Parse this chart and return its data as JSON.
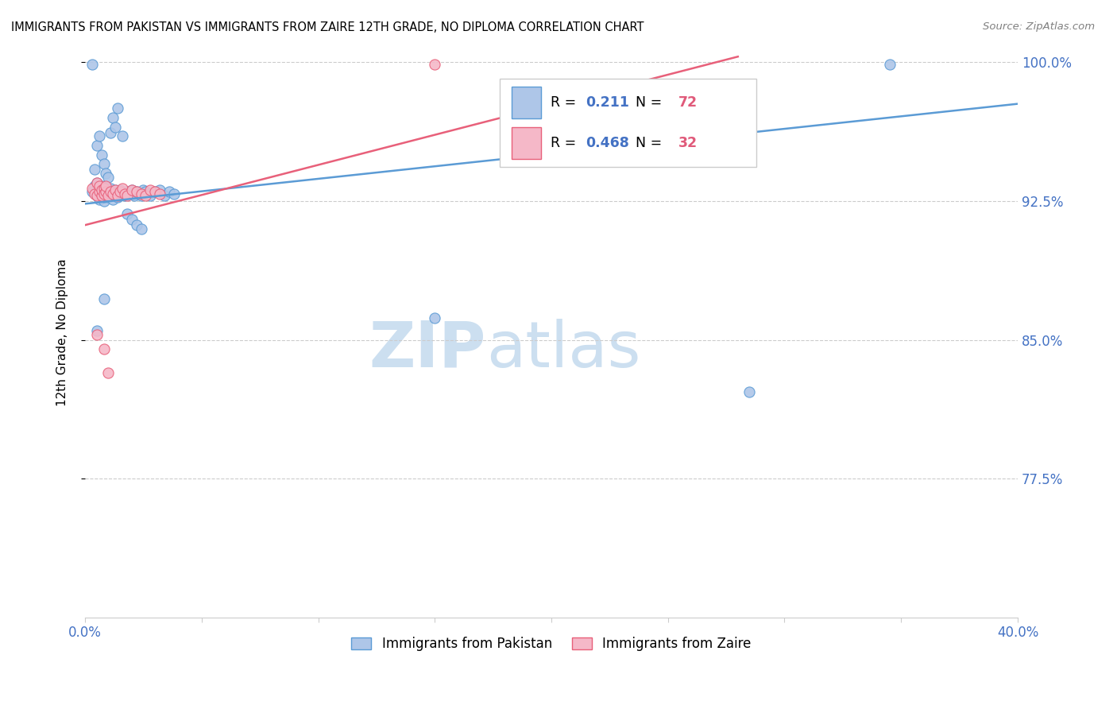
{
  "title": "IMMIGRANTS FROM PAKISTAN VS IMMIGRANTS FROM ZAIRE 12TH GRADE, NO DIPLOMA CORRELATION CHART",
  "source": "Source: ZipAtlas.com",
  "xmin": 0.0,
  "xmax": 0.4,
  "ymin": 0.7,
  "ymax": 1.008,
  "ytick_vals": [
    1.0,
    0.925,
    0.85,
    0.775
  ],
  "ytick_labels": [
    "100.0%",
    "92.5%",
    "85.0%",
    "77.5%"
  ],
  "legend_pakistan": "Immigrants from Pakistan",
  "legend_zaire": "Immigrants from Zaire",
  "R_pakistan": 0.211,
  "N_pakistan": 72,
  "R_zaire": 0.468,
  "N_zaire": 32,
  "color_pakistan_fill": "#aec6e8",
  "color_pakistan_edge": "#5b9bd5",
  "color_zaire_fill": "#f5b8c8",
  "color_zaire_edge": "#e8607a",
  "color_line_pakistan": "#5b9bd5",
  "color_line_zaire": "#e8607a",
  "color_R_val": "#4472c4",
  "color_N_val": "#e05a7a",
  "pak_line_x": [
    0.0,
    0.4
  ],
  "pak_line_y": [
    0.9235,
    0.9775
  ],
  "zaire_line_x": [
    0.0,
    0.28
  ],
  "zaire_line_y": [
    0.912,
    1.003
  ],
  "pakistan_x": [
    0.003,
    0.004,
    0.005,
    0.005,
    0.005,
    0.006,
    0.006,
    0.006,
    0.007,
    0.007,
    0.007,
    0.008,
    0.008,
    0.008,
    0.008,
    0.009,
    0.009,
    0.009,
    0.01,
    0.01,
    0.01,
    0.011,
    0.011,
    0.011,
    0.012,
    0.012,
    0.013,
    0.013,
    0.014,
    0.014,
    0.015,
    0.015,
    0.016,
    0.017,
    0.018,
    0.019,
    0.02,
    0.021,
    0.022,
    0.023,
    0.024,
    0.025,
    0.026,
    0.027,
    0.028,
    0.03,
    0.032,
    0.034,
    0.036,
    0.038,
    0.004,
    0.005,
    0.006,
    0.007,
    0.008,
    0.009,
    0.01,
    0.011,
    0.012,
    0.013,
    0.014,
    0.016,
    0.018,
    0.02,
    0.022,
    0.024,
    0.15,
    0.285,
    0.345,
    0.003,
    0.005,
    0.008
  ],
  "pakistan_y": [
    0.93,
    0.933,
    0.928,
    0.932,
    0.935,
    0.926,
    0.929,
    0.931,
    0.928,
    0.93,
    0.933,
    0.925,
    0.927,
    0.929,
    0.932,
    0.928,
    0.93,
    0.932,
    0.927,
    0.929,
    0.931,
    0.928,
    0.93,
    0.932,
    0.926,
    0.929,
    0.928,
    0.931,
    0.927,
    0.93,
    0.928,
    0.931,
    0.929,
    0.928,
    0.93,
    0.929,
    0.931,
    0.928,
    0.93,
    0.929,
    0.928,
    0.931,
    0.93,
    0.929,
    0.928,
    0.93,
    0.931,
    0.928,
    0.93,
    0.929,
    0.942,
    0.955,
    0.96,
    0.95,
    0.945,
    0.94,
    0.938,
    0.962,
    0.97,
    0.965,
    0.975,
    0.96,
    0.918,
    0.915,
    0.912,
    0.91,
    0.862,
    0.822,
    0.999,
    0.999,
    0.855,
    0.872
  ],
  "zaire_x": [
    0.003,
    0.004,
    0.005,
    0.005,
    0.006,
    0.006,
    0.007,
    0.007,
    0.008,
    0.008,
    0.009,
    0.009,
    0.01,
    0.011,
    0.012,
    0.013,
    0.014,
    0.015,
    0.016,
    0.017,
    0.018,
    0.02,
    0.022,
    0.024,
    0.026,
    0.028,
    0.03,
    0.032,
    0.15,
    0.005,
    0.008,
    0.01
  ],
  "zaire_y": [
    0.932,
    0.929,
    0.935,
    0.928,
    0.93,
    0.933,
    0.928,
    0.931,
    0.932,
    0.929,
    0.93,
    0.933,
    0.928,
    0.93,
    0.929,
    0.931,
    0.928,
    0.93,
    0.932,
    0.929,
    0.928,
    0.931,
    0.93,
    0.929,
    0.928,
    0.931,
    0.93,
    0.929,
    0.999,
    0.853,
    0.845,
    0.832
  ]
}
